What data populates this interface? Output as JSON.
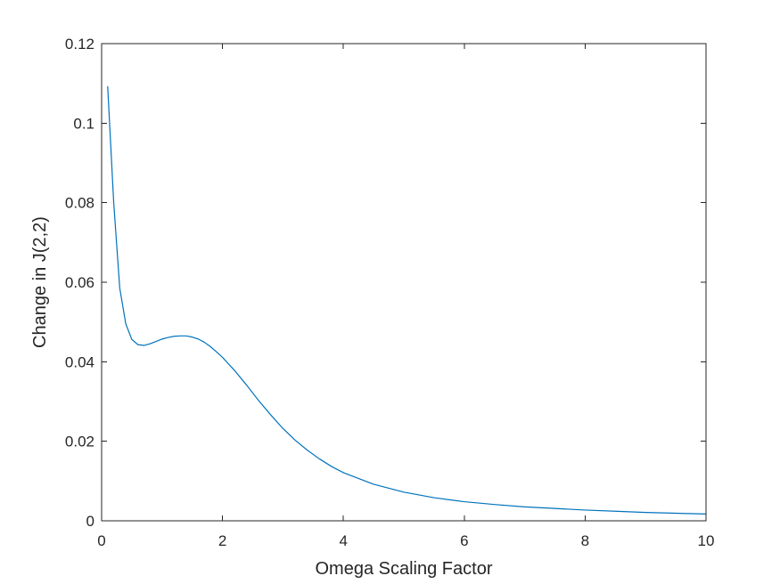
{
  "chart_data": {
    "type": "line",
    "title": "",
    "xlabel": "Omega Scaling Factor",
    "ylabel": "Change in J(2,2)",
    "xlim": [
      0,
      10
    ],
    "ylim": [
      0,
      0.12
    ],
    "xticks": [
      0,
      2,
      4,
      6,
      8,
      10
    ],
    "xtick_labels": [
      "0",
      "2",
      "4",
      "6",
      "8",
      "10"
    ],
    "yticks": [
      0,
      0.02,
      0.04,
      0.06,
      0.08,
      0.1,
      0.12
    ],
    "ytick_labels": [
      "0",
      "0.02",
      "0.04",
      "0.06",
      "0.08",
      "0.1",
      "0.12"
    ],
    "grid": false,
    "box": true,
    "series": [
      {
        "color": "#0072BD",
        "x": [
          0.1,
          0.2,
          0.3,
          0.4,
          0.5,
          0.6,
          0.7,
          0.8,
          0.9,
          1.0,
          1.1,
          1.2,
          1.3,
          1.4,
          1.5,
          1.6,
          1.7,
          1.8,
          1.9,
          2.0,
          2.2,
          2.4,
          2.6,
          2.8,
          3.0,
          3.2,
          3.4,
          3.6,
          3.8,
          4.0,
          4.5,
          5.0,
          5.5,
          6.0,
          6.5,
          7.0,
          7.5,
          8.0,
          8.5,
          9.0,
          9.5,
          10.0
        ],
        "y": [
          0.1093,
          0.08,
          0.0585,
          0.0495,
          0.0456,
          0.0443,
          0.0441,
          0.0445,
          0.0451,
          0.0457,
          0.0461,
          0.0464,
          0.0465,
          0.0465,
          0.0462,
          0.0457,
          0.0449,
          0.0438,
          0.0425,
          0.0411,
          0.0378,
          0.0341,
          0.0302,
          0.0266,
          0.0232,
          0.0203,
          0.0178,
          0.0156,
          0.0137,
          0.0121,
          0.0092,
          0.0072,
          0.0058,
          0.0048,
          0.0041,
          0.0035,
          0.0031,
          0.0027,
          0.0024,
          0.0021,
          0.0019,
          0.0017
        ]
      }
    ]
  }
}
